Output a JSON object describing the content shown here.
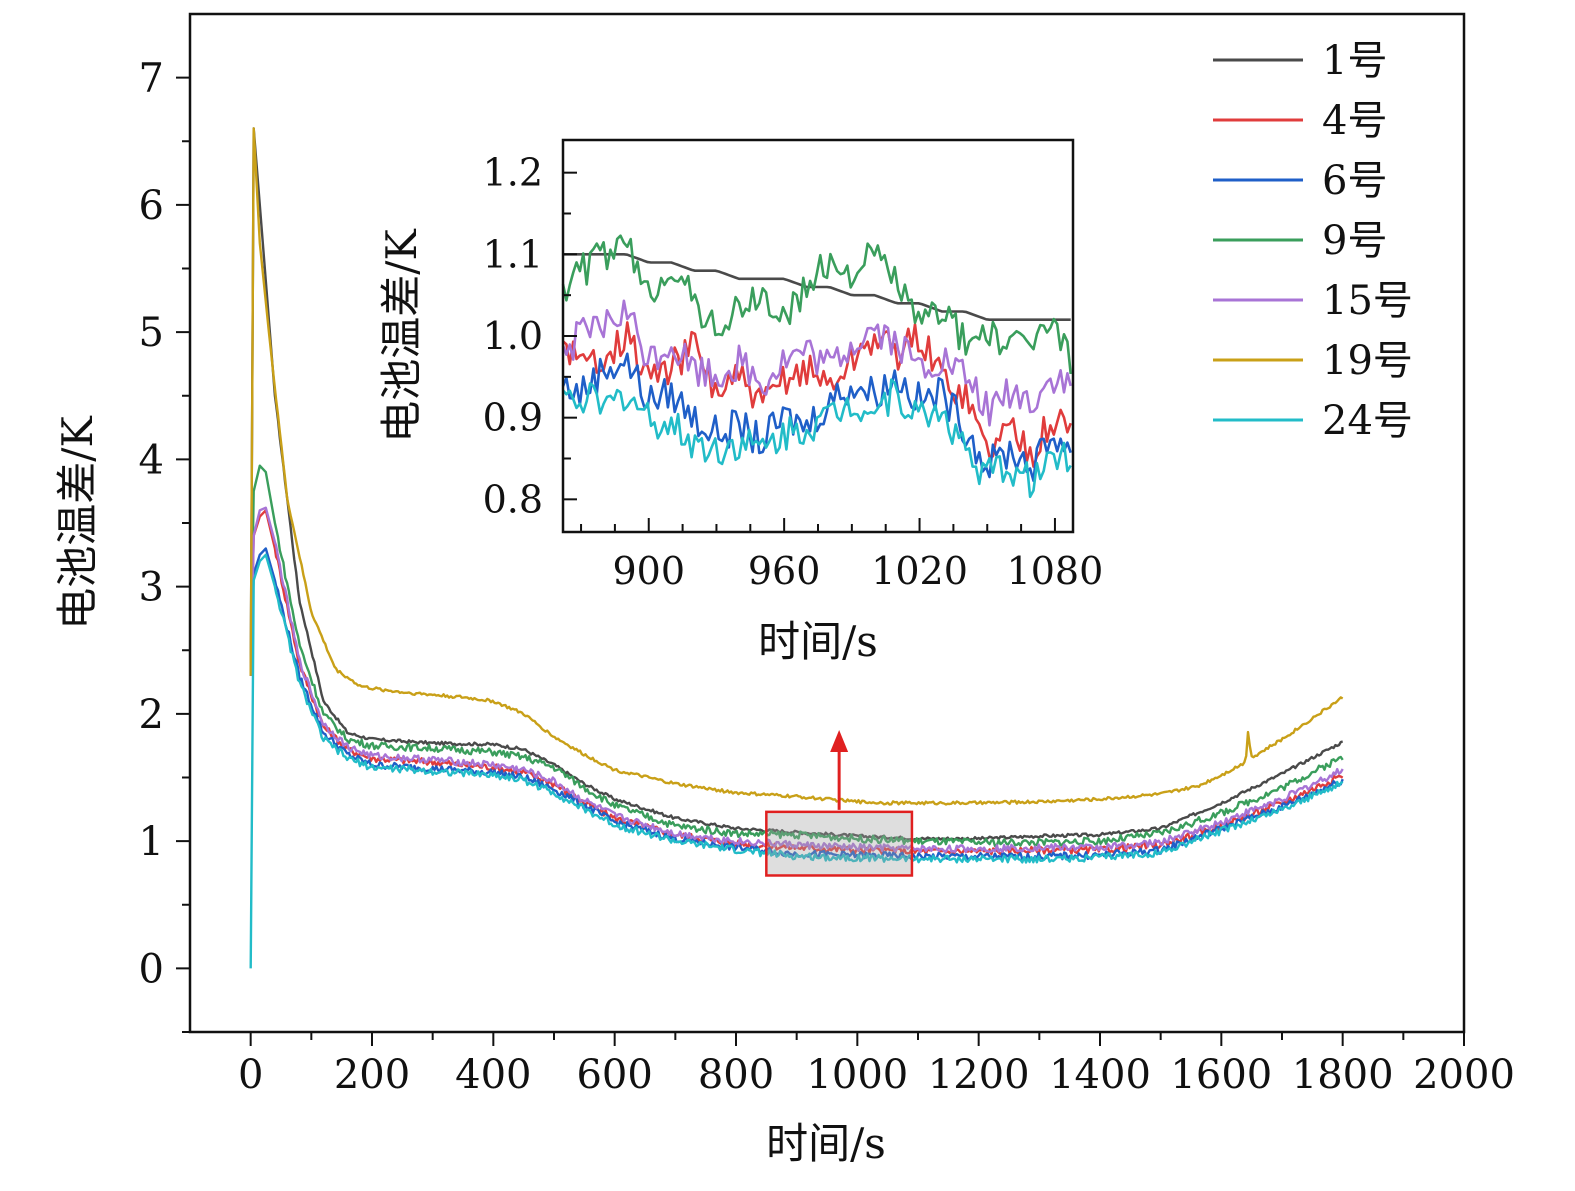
{
  "chart_data": [
    {
      "type": "line",
      "title": "",
      "xlabel": "时间/s",
      "ylabel": "电池温差/K",
      "xlim": [
        -100,
        2000
      ],
      "ylim": [
        -0.5,
        7.5
      ],
      "xticks": [
        0,
        200,
        400,
        600,
        800,
        1000,
        1200,
        1400,
        1600,
        1800,
        2000
      ],
      "xtick_labels": [
        "0",
        "200",
        "400",
        "600",
        "800",
        "1000",
        "1200",
        "1400",
        "1600",
        "1800",
        "2000"
      ],
      "yticks": [
        0,
        1,
        2,
        3,
        4,
        5,
        6,
        7
      ],
      "ytick_labels": [
        "0",
        "1",
        "2",
        "3",
        "4",
        "5",
        "6",
        "7"
      ],
      "legend_position": "top-right",
      "highlight": {
        "x_range": [
          850,
          1090
        ],
        "y_range": [
          0.73,
          1.23
        ],
        "arrow": "up to inset"
      },
      "series": [
        {
          "name": "1号",
          "color": "#4a4a4a",
          "x": [
            0,
            5,
            15,
            40,
            80,
            120,
            160,
            200,
            300,
            400,
            450,
            500,
            550,
            600,
            700,
            800,
            900,
            1000,
            1100,
            1200,
            1300,
            1400,
            1500,
            1600,
            1700,
            1800
          ],
          "y": [
            2.3,
            6.6,
            6.0,
            4.5,
            2.9,
            2.1,
            1.85,
            1.8,
            1.77,
            1.76,
            1.72,
            1.6,
            1.45,
            1.33,
            1.18,
            1.1,
            1.07,
            1.04,
            1.02,
            1.02,
            1.04,
            1.05,
            1.1,
            1.3,
            1.53,
            1.78
          ]
        },
        {
          "name": "4号",
          "color": "#e03c3c",
          "x": [
            0,
            5,
            15,
            25,
            40,
            80,
            120,
            160,
            200,
            300,
            400,
            450,
            500,
            550,
            600,
            700,
            800,
            900,
            1000,
            1100,
            1200,
            1300,
            1400,
            1500,
            1600,
            1700,
            1800
          ],
          "y": [
            2.3,
            3.4,
            3.55,
            3.6,
            3.3,
            2.4,
            1.9,
            1.72,
            1.65,
            1.62,
            1.58,
            1.54,
            1.45,
            1.3,
            1.18,
            1.05,
            0.98,
            0.95,
            0.93,
            0.92,
            0.92,
            0.93,
            0.93,
            0.97,
            1.12,
            1.3,
            1.52
          ]
        },
        {
          "name": "6号",
          "color": "#1f5fc8",
          "x": [
            0,
            5,
            15,
            25,
            40,
            80,
            120,
            160,
            200,
            300,
            400,
            450,
            500,
            550,
            600,
            700,
            800,
            900,
            1000,
            1100,
            1200,
            1300,
            1400,
            1500,
            1600,
            1700,
            1800
          ],
          "y": [
            2.3,
            3.1,
            3.25,
            3.3,
            3.05,
            2.3,
            1.85,
            1.68,
            1.6,
            1.57,
            1.54,
            1.5,
            1.41,
            1.28,
            1.15,
            1.02,
            0.95,
            0.9,
            0.89,
            0.88,
            0.88,
            0.88,
            0.89,
            0.93,
            1.1,
            1.27,
            1.48
          ]
        },
        {
          "name": "9号",
          "color": "#3a9e5c",
          "x": [
            0,
            5,
            15,
            25,
            40,
            80,
            120,
            160,
            200,
            300,
            400,
            450,
            500,
            550,
            600,
            700,
            800,
            900,
            1000,
            1100,
            1200,
            1300,
            1400,
            1500,
            1600,
            1700,
            1800
          ],
          "y": [
            2.3,
            3.75,
            3.95,
            3.9,
            3.5,
            2.55,
            2.0,
            1.8,
            1.75,
            1.73,
            1.7,
            1.66,
            1.58,
            1.42,
            1.28,
            1.12,
            1.06,
            1.05,
            1.02,
            1.0,
            0.99,
            0.99,
            1.0,
            1.06,
            1.22,
            1.42,
            1.66
          ]
        },
        {
          "name": "15号",
          "color": "#a874d6",
          "x": [
            0,
            5,
            15,
            25,
            40,
            80,
            120,
            160,
            200,
            300,
            400,
            450,
            500,
            550,
            600,
            700,
            800,
            900,
            1000,
            1100,
            1200,
            1300,
            1400,
            1500,
            1600,
            1700,
            1800
          ],
          "y": [
            2.3,
            3.4,
            3.6,
            3.62,
            3.35,
            2.42,
            1.92,
            1.74,
            1.67,
            1.64,
            1.6,
            1.56,
            1.47,
            1.32,
            1.2,
            1.06,
            1.0,
            0.97,
            0.95,
            0.94,
            0.94,
            0.95,
            0.95,
            0.99,
            1.15,
            1.33,
            1.56
          ]
        },
        {
          "name": "19号",
          "color": "#c9a018",
          "x": [
            0,
            5,
            15,
            30,
            60,
            100,
            140,
            180,
            200,
            250,
            300,
            350,
            400,
            450,
            500,
            550,
            600,
            700,
            800,
            900,
            1000,
            1050,
            1100,
            1200,
            1300,
            1400,
            1500,
            1560,
            1600,
            1640,
            1645,
            1648,
            1652,
            1700,
            1800
          ],
          "y": [
            2.3,
            6.6,
            5.7,
            5.0,
            3.7,
            2.8,
            2.35,
            2.22,
            2.2,
            2.17,
            2.15,
            2.13,
            2.1,
            2.0,
            1.82,
            1.68,
            1.56,
            1.45,
            1.38,
            1.35,
            1.31,
            1.3,
            1.3,
            1.3,
            1.31,
            1.33,
            1.37,
            1.43,
            1.52,
            1.62,
            1.92,
            1.68,
            1.66,
            1.8,
            2.13
          ]
        },
        {
          "name": "24号",
          "color": "#22bcc8",
          "x": [
            0,
            5,
            15,
            25,
            40,
            80,
            120,
            160,
            200,
            300,
            400,
            450,
            500,
            550,
            600,
            700,
            800,
            900,
            1000,
            1100,
            1200,
            1300,
            1400,
            1500,
            1600,
            1700,
            1800
          ],
          "y": [
            0.0,
            3.05,
            3.2,
            3.25,
            3.0,
            2.25,
            1.8,
            1.65,
            1.58,
            1.55,
            1.52,
            1.48,
            1.38,
            1.25,
            1.13,
            1.0,
            0.93,
            0.88,
            0.87,
            0.86,
            0.86,
            0.86,
            0.87,
            0.91,
            1.08,
            1.25,
            1.46
          ]
        }
      ]
    },
    {
      "type": "line",
      "title": "",
      "xlabel": "时间/s",
      "ylabel": "电池温差/K",
      "xlim": [
        862,
        1088
      ],
      "ylim": [
        0.76,
        1.24
      ],
      "xticks": [
        900,
        960,
        1020,
        1080
      ],
      "xtick_labels": [
        "900",
        "960",
        "1020",
        "1080"
      ],
      "yticks": [
        0.8,
        0.9,
        1.0,
        1.1,
        1.2
      ],
      "ytick_labels": [
        "0.8",
        "0.9",
        "1.0",
        "1.1",
        "1.2"
      ],
      "series": [
        {
          "name": "1号",
          "color": "#4a4a4a",
          "x": [
            862,
            870,
            880,
            890,
            900,
            910,
            920,
            930,
            940,
            950,
            960,
            970,
            980,
            990,
            1000,
            1010,
            1020,
            1030,
            1040,
            1050,
            1060,
            1070,
            1080,
            1088
          ],
          "y": [
            1.1,
            1.1,
            1.1,
            1.1,
            1.09,
            1.09,
            1.08,
            1.08,
            1.07,
            1.07,
            1.07,
            1.06,
            1.06,
            1.05,
            1.05,
            1.04,
            1.04,
            1.03,
            1.03,
            1.02,
            1.02,
            1.02,
            1.02,
            1.02
          ]
        },
        {
          "name": "4号",
          "color": "#e03c3c",
          "x": [
            862,
            870,
            880,
            890,
            900,
            910,
            920,
            930,
            940,
            950,
            960,
            970,
            980,
            990,
            1000,
            1010,
            1020,
            1030,
            1040,
            1050,
            1060,
            1070,
            1080,
            1088
          ],
          "y": [
            1.0,
            0.96,
            0.98,
            1.0,
            0.95,
            0.96,
            0.99,
            0.93,
            0.95,
            0.91,
            0.95,
            0.96,
            0.94,
            0.97,
            1.0,
            0.98,
            1.0,
            0.95,
            0.93,
            0.86,
            0.89,
            0.86,
            0.9,
            0.88
          ]
        },
        {
          "name": "6号",
          "color": "#1f5fc8",
          "x": [
            862,
            870,
            880,
            890,
            900,
            910,
            920,
            930,
            940,
            950,
            960,
            970,
            980,
            990,
            1000,
            1010,
            1020,
            1030,
            1040,
            1050,
            1060,
            1070,
            1080,
            1088
          ],
          "y": [
            0.94,
            0.93,
            0.96,
            0.97,
            0.92,
            0.93,
            0.9,
            0.88,
            0.89,
            0.87,
            0.9,
            0.89,
            0.92,
            0.94,
            0.93,
            0.95,
            0.92,
            0.93,
            0.89,
            0.84,
            0.86,
            0.84,
            0.88,
            0.86
          ]
        },
        {
          "name": "9号",
          "color": "#3a9e5c",
          "x": [
            862,
            870,
            880,
            890,
            900,
            910,
            920,
            930,
            940,
            950,
            960,
            970,
            980,
            990,
            1000,
            1010,
            1020,
            1030,
            1040,
            1050,
            1060,
            1070,
            1080,
            1088
          ],
          "y": [
            1.06,
            1.08,
            1.1,
            1.11,
            1.05,
            1.09,
            1.04,
            1.01,
            1.03,
            1.05,
            1.02,
            1.06,
            1.09,
            1.08,
            1.1,
            1.07,
            1.01,
            1.04,
            0.99,
            1.01,
            0.98,
            1.0,
            1.01,
            0.97
          ]
        },
        {
          "name": "15号",
          "color": "#a874d6",
          "x": [
            862,
            870,
            880,
            890,
            900,
            910,
            920,
            930,
            940,
            950,
            960,
            970,
            980,
            990,
            1000,
            1010,
            1020,
            1030,
            1040,
            1050,
            1060,
            1070,
            1080,
            1088
          ],
          "y": [
            0.98,
            1.0,
            1.01,
            1.03,
            0.97,
            0.99,
            0.96,
            0.95,
            0.97,
            0.94,
            0.97,
            0.98,
            0.96,
            0.99,
            1.01,
            0.99,
            0.96,
            0.97,
            0.95,
            0.91,
            0.93,
            0.92,
            0.95,
            0.93
          ]
        },
        {
          "name": "24号",
          "color": "#22bcc8",
          "x": [
            862,
            870,
            880,
            890,
            900,
            910,
            920,
            930,
            940,
            950,
            960,
            970,
            980,
            990,
            1000,
            1010,
            1020,
            1030,
            1040,
            1050,
            1060,
            1070,
            1080,
            1088
          ],
          "y": [
            0.92,
            0.93,
            0.91,
            0.93,
            0.9,
            0.89,
            0.87,
            0.86,
            0.87,
            0.86,
            0.88,
            0.89,
            0.9,
            0.92,
            0.91,
            0.93,
            0.9,
            0.91,
            0.86,
            0.83,
            0.84,
            0.82,
            0.86,
            0.85
          ]
        }
      ]
    }
  ]
}
